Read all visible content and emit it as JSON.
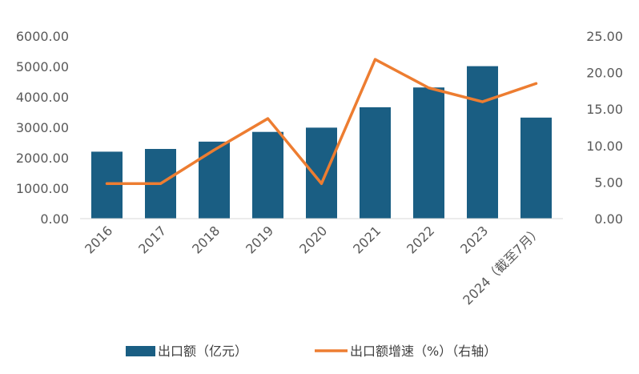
{
  "chart_data": {
    "type": "bar",
    "categories": [
      "2016",
      "2017",
      "2018",
      "2019",
      "2020",
      "2021",
      "2022",
      "2023",
      "2024（截至7月）"
    ],
    "series": [
      {
        "name": "出口额（亿元）",
        "type": "bar",
        "axis": "left",
        "color": "#1a5e83",
        "values": [
          2200,
          2290,
          2530,
          2850,
          2990,
          3660,
          4310,
          5010,
          3320
        ]
      },
      {
        "name": "出口额增速（%）（右轴）",
        "type": "line",
        "axis": "right",
        "color": "#ed7d31",
        "values": [
          4.8,
          4.8,
          9.4,
          13.7,
          4.8,
          21.8,
          17.9,
          16.0,
          18.5
        ]
      }
    ],
    "y_left": {
      "ylim": [
        0,
        6000
      ],
      "ticks": [
        "0.00",
        "1000.00",
        "2000.00",
        "3000.00",
        "4000.00",
        "5000.00",
        "6000.00"
      ]
    },
    "y_right": {
      "ylim": [
        0,
        25
      ],
      "ticks": [
        "0.00",
        "5.00",
        "10.00",
        "15.00",
        "20.00",
        "25.00"
      ]
    },
    "title": "",
    "xlabel": "",
    "grid": false,
    "legend_position": "bottom"
  }
}
